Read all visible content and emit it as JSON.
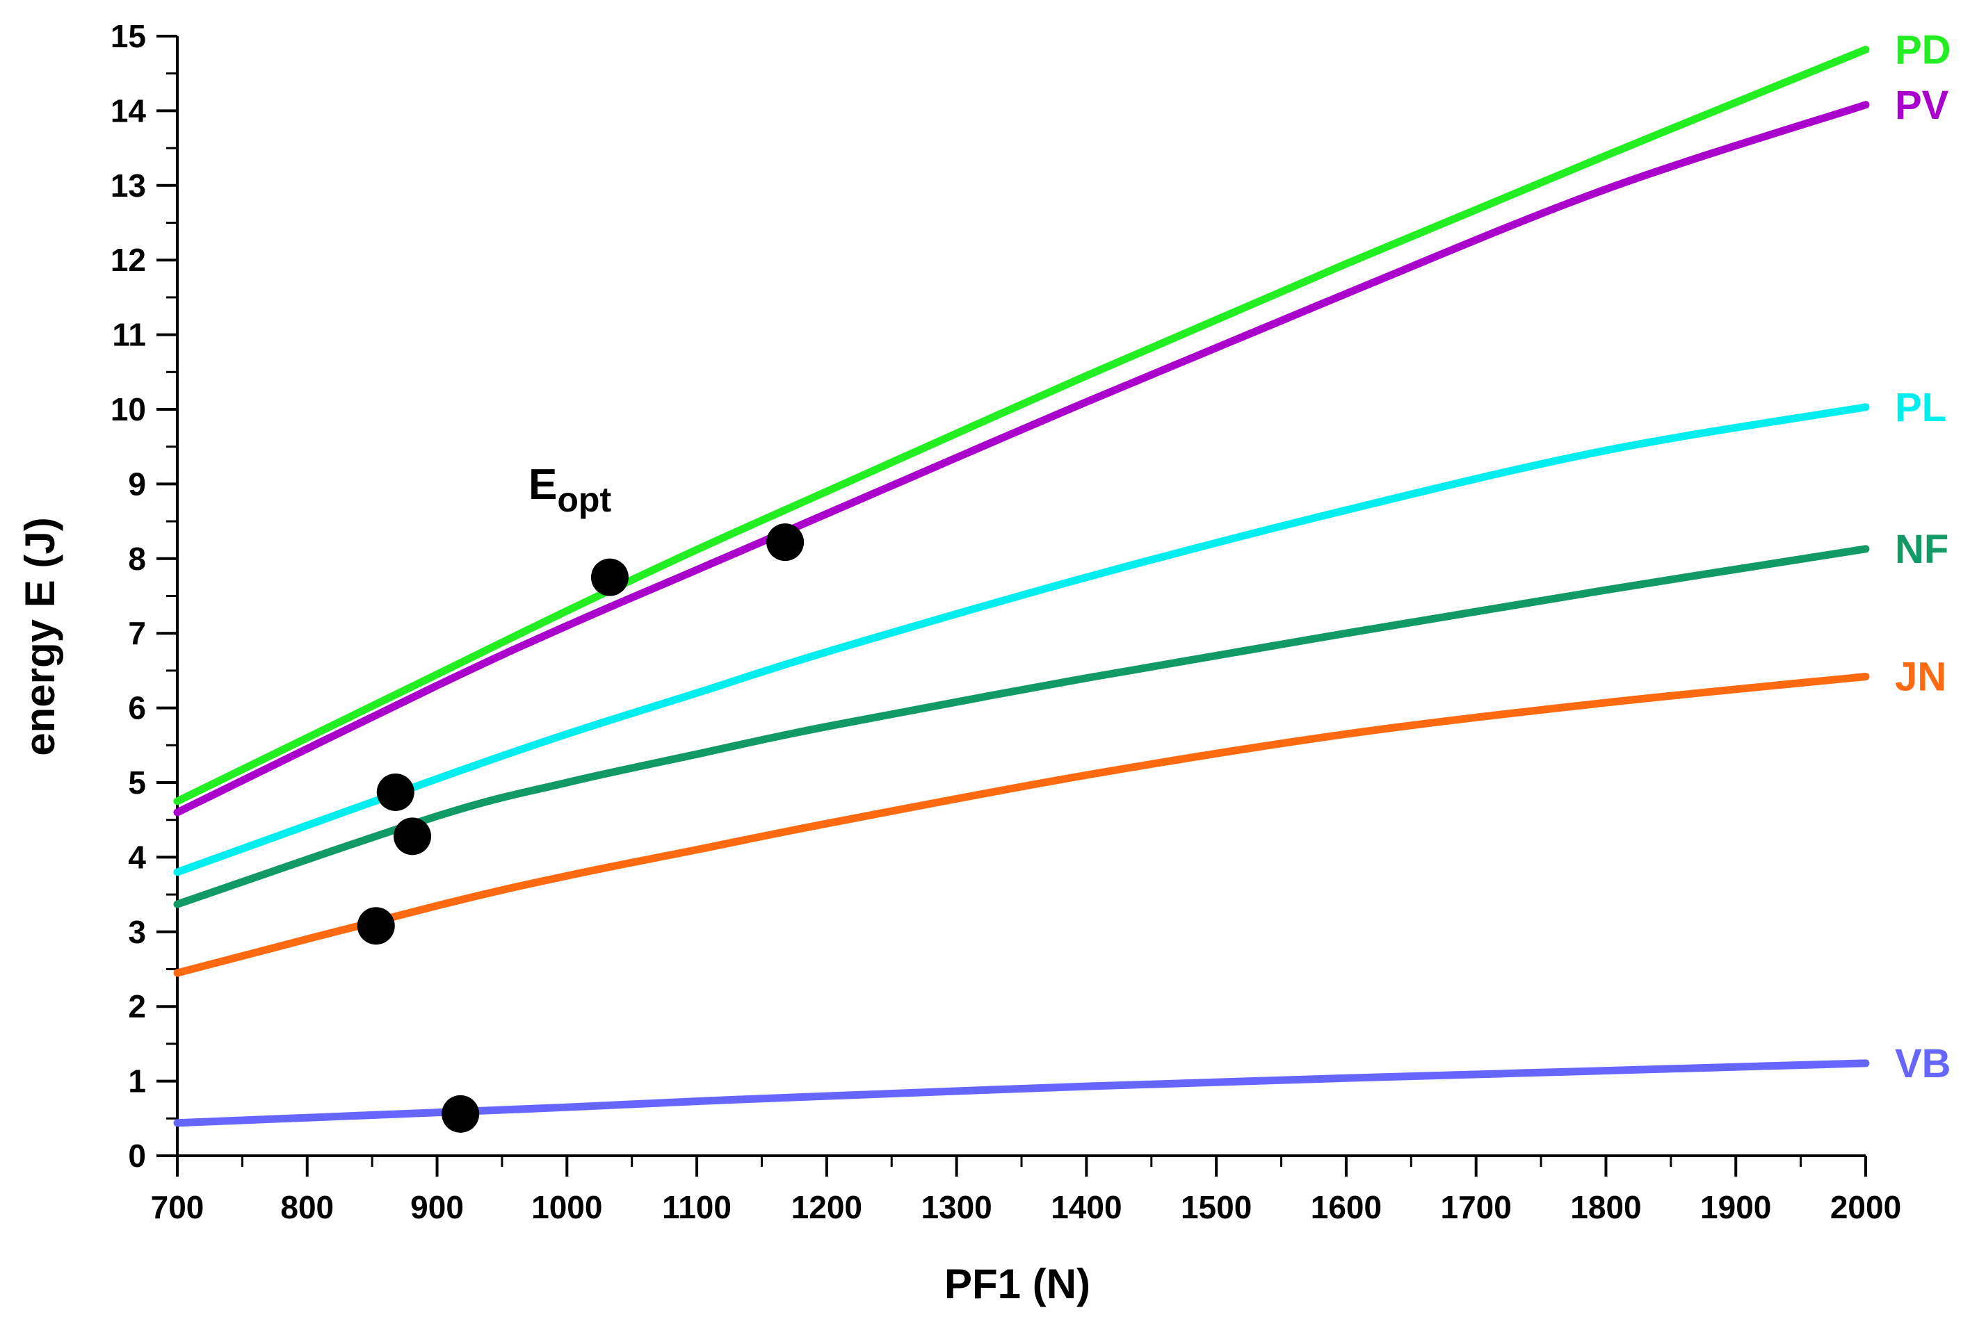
{
  "chart_data": {
    "type": "line",
    "title": "",
    "xlabel": "PF1 (N)",
    "ylabel": "energy E (J)",
    "xlim": [
      700,
      2000
    ],
    "ylim": [
      0,
      15
    ],
    "xticks": [
      700,
      800,
      900,
      1000,
      1100,
      1200,
      1300,
      1400,
      1500,
      1600,
      1700,
      1800,
      1900,
      2000
    ],
    "yticks": [
      0,
      1,
      2,
      3,
      4,
      5,
      6,
      7,
      8,
      9,
      10,
      11,
      12,
      13,
      14,
      15
    ],
    "grid": false,
    "annotation": {
      "text": "E",
      "subscript": "opt"
    },
    "series": [
      {
        "name": "PD",
        "color": "#22ee22",
        "x": [
          700,
          900,
          1000,
          1100,
          1200,
          1400,
          1600,
          1800,
          2000
        ],
        "y": [
          4.75,
          6.45,
          7.3,
          8.12,
          8.9,
          10.45,
          11.95,
          13.4,
          14.82
        ]
      },
      {
        "name": "PV",
        "color": "#aa00cc",
        "x": [
          700,
          900,
          1000,
          1100,
          1200,
          1400,
          1600,
          1800,
          2000
        ],
        "y": [
          4.6,
          6.3,
          7.1,
          7.85,
          8.6,
          10.1,
          11.55,
          12.95,
          14.08
        ]
      },
      {
        "name": "PL",
        "color": "#00eeee",
        "x": [
          700,
          900,
          1000,
          1100,
          1200,
          1400,
          1600,
          1800,
          2000
        ],
        "y": [
          3.8,
          5.05,
          5.65,
          6.2,
          6.75,
          7.75,
          8.65,
          9.45,
          10.03
        ]
      },
      {
        "name": "NF",
        "color": "#119966",
        "x": [
          700,
          900,
          1000,
          1100,
          1200,
          1400,
          1600,
          1800,
          2000
        ],
        "y": [
          3.37,
          4.55,
          5.0,
          5.38,
          5.75,
          6.4,
          7.0,
          7.58,
          8.13
        ]
      },
      {
        "name": "JN",
        "color": "#ff6a10",
        "x": [
          700,
          900,
          1000,
          1100,
          1200,
          1400,
          1600,
          1800,
          2000
        ],
        "y": [
          2.45,
          3.35,
          3.75,
          4.1,
          4.45,
          5.1,
          5.65,
          6.07,
          6.42
        ]
      },
      {
        "name": "VB",
        "color": "#6666ff",
        "x": [
          700,
          900,
          1000,
          1100,
          1200,
          1400,
          1600,
          1800,
          2000
        ],
        "y": [
          0.44,
          0.58,
          0.65,
          0.73,
          0.8,
          0.93,
          1.04,
          1.14,
          1.24
        ]
      }
    ],
    "optimum_points": [
      {
        "series": "PD",
        "x": 1033,
        "y": 7.75
      },
      {
        "series": "PV",
        "x": 1168,
        "y": 8.22
      },
      {
        "series": "PL",
        "x": 868,
        "y": 4.87
      },
      {
        "series": "NF",
        "x": 881,
        "y": 4.28
      },
      {
        "series": "JN",
        "x": 853,
        "y": 3.08
      },
      {
        "series": "VB",
        "x": 918,
        "y": 0.56
      }
    ]
  }
}
